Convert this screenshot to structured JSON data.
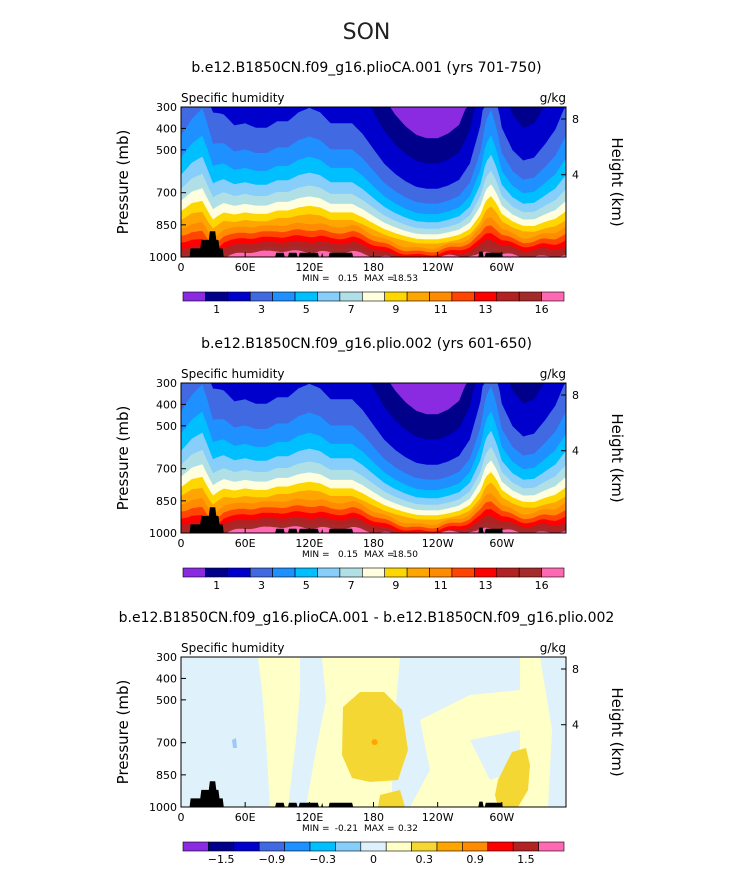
{
  "title": "SON",
  "colors": {
    "full_field": [
      "#8a2be2",
      "#00008b",
      "#0000cd",
      "#4169e1",
      "#1e90ff",
      "#00bfff",
      "#87cefa",
      "#b0e0e6",
      "#ffffe0",
      "#ffd700",
      "#ffa500",
      "#ff8c00",
      "#ff4500",
      "#ff0000",
      "#b22222",
      "#a52a2a",
      "#ff69b4"
    ],
    "difference": [
      "#8a2be2",
      "#00008b",
      "#0000cd",
      "#4169e1",
      "#1e90ff",
      "#00bfff",
      "#87cefa",
      "#dff2fb",
      "#ffffc8",
      "#f5d733",
      "#ffa500",
      "#ff8c00",
      "#ff0000",
      "#b22222",
      "#ff69b4"
    ],
    "topography": "#000000"
  },
  "chart_data": [
    {
      "type": "heatmap",
      "title": "b.e12.B1850CN.f09_g16.plioCA.001 (yrs 701-750)",
      "variable_label": "Specific humidity",
      "units_label": "g/kg",
      "ylabel": "Pressure (mb)",
      "ylabel_right": "Height (km)",
      "x_ticks": [
        "0",
        "60E",
        "120E",
        "180",
        "120W",
        "60W"
      ],
      "y_ticks": [
        "300",
        "400",
        "500",
        "700",
        "850",
        "1000"
      ],
      "y_right_ticks": [
        "8",
        "4"
      ],
      "xlim": [
        0,
        360
      ],
      "ylim": [
        1000,
        300
      ],
      "stats_min_label": "MIN =",
      "stats_min": "0.15",
      "stats_max_label": "MAX =",
      "stats_max": "18.53",
      "colorbar_labels": [
        "1",
        "3",
        "5",
        "7",
        "9",
        "11",
        "13",
        "16"
      ],
      "contour_levels": [
        0.5,
        1,
        2,
        3,
        4,
        5,
        6,
        7,
        8,
        9,
        10,
        11,
        12,
        13,
        14,
        15,
        16
      ],
      "surface_q": [
        [
          0,
          14.5
        ],
        [
          10,
          15
        ],
        [
          20,
          14.5
        ],
        [
          25,
          13.5
        ],
        [
          30,
          13
        ],
        [
          35,
          14
        ],
        [
          40,
          15
        ],
        [
          50,
          15.5
        ],
        [
          60,
          16
        ],
        [
          70,
          16
        ],
        [
          80,
          16
        ],
        [
          90,
          16.5
        ],
        [
          100,
          16.5
        ],
        [
          110,
          16.5
        ],
        [
          120,
          16.5
        ],
        [
          130,
          16.5
        ],
        [
          140,
          16
        ],
        [
          150,
          16
        ],
        [
          160,
          16
        ],
        [
          170,
          15.5
        ],
        [
          180,
          15
        ],
        [
          190,
          14.5
        ],
        [
          200,
          14
        ],
        [
          210,
          13.5
        ],
        [
          220,
          13
        ],
        [
          230,
          13
        ],
        [
          240,
          13
        ],
        [
          250,
          13.5
        ],
        [
          260,
          14
        ],
        [
          270,
          14.5
        ],
        [
          280,
          15.5
        ],
        [
          285,
          16
        ],
        [
          290,
          16
        ],
        [
          300,
          16
        ],
        [
          310,
          16
        ],
        [
          320,
          15.5
        ],
        [
          330,
          15
        ],
        [
          340,
          15
        ],
        [
          350,
          14.5
        ],
        [
          360,
          14.5
        ]
      ],
      "scale_height_mb": [
        [
          0,
          360
        ],
        [
          10,
          400
        ],
        [
          20,
          440
        ],
        [
          25,
          410
        ],
        [
          30,
          360
        ],
        [
          40,
          330
        ],
        [
          50,
          300
        ],
        [
          60,
          300
        ],
        [
          70,
          290
        ],
        [
          80,
          290
        ],
        [
          90,
          300
        ],
        [
          100,
          300
        ],
        [
          110,
          320
        ],
        [
          120,
          330
        ],
        [
          130,
          320
        ],
        [
          140,
          300
        ],
        [
          150,
          300
        ],
        [
          160,
          300
        ],
        [
          170,
          280
        ],
        [
          180,
          250
        ],
        [
          190,
          220
        ],
        [
          200,
          200
        ],
        [
          210,
          185
        ],
        [
          220,
          175
        ],
        [
          230,
          170
        ],
        [
          240,
          170
        ],
        [
          250,
          175
        ],
        [
          260,
          185
        ],
        [
          270,
          220
        ],
        [
          280,
          300
        ],
        [
          285,
          380
        ],
        [
          290,
          410
        ],
        [
          295,
          360
        ],
        [
          300,
          290
        ],
        [
          310,
          240
        ],
        [
          320,
          220
        ],
        [
          330,
          230
        ],
        [
          340,
          260
        ],
        [
          350,
          300
        ],
        [
          360,
          360
        ]
      ],
      "topography_mb": [
        [
          0,
          1000
        ],
        [
          8,
          1000
        ],
        [
          9,
          960
        ],
        [
          18,
          960
        ],
        [
          19,
          920
        ],
        [
          26,
          920
        ],
        [
          27,
          880
        ],
        [
          32,
          880
        ],
        [
          33,
          920
        ],
        [
          35,
          920
        ],
        [
          36,
          960
        ],
        [
          39,
          960
        ],
        [
          40,
          1000
        ],
        [
          88,
          1000
        ],
        [
          89,
          980
        ],
        [
          96,
          980
        ],
        [
          97,
          1000
        ],
        [
          100,
          1000
        ],
        [
          101,
          980
        ],
        [
          108,
          980
        ],
        [
          109,
          1000
        ],
        [
          110,
          1000
        ],
        [
          111,
          980
        ],
        [
          128,
          980
        ],
        [
          129,
          1000
        ],
        [
          131,
          1000
        ],
        [
          132,
          980
        ],
        [
          133,
          1000
        ],
        [
          138,
          1000
        ],
        [
          139,
          980
        ],
        [
          160,
          980
        ],
        [
          161,
          1000
        ],
        [
          278,
          1000
        ],
        [
          279,
          975
        ],
        [
          282,
          975
        ],
        [
          283,
          1000
        ],
        [
          284,
          1000
        ],
        [
          285,
          980
        ],
        [
          300,
          980
        ],
        [
          301,
          1000
        ],
        [
          360,
          1000
        ]
      ]
    },
    {
      "type": "heatmap",
      "title": "b.e12.B1850CN.f09_g16.plio.002 (yrs 601-650)",
      "variable_label": "Specific humidity",
      "units_label": "g/kg",
      "ylabel": "Pressure (mb)",
      "ylabel_right": "Height (km)",
      "x_ticks": [
        "0",
        "60E",
        "120E",
        "180",
        "120W",
        "60W"
      ],
      "y_ticks": [
        "300",
        "400",
        "500",
        "700",
        "850",
        "1000"
      ],
      "y_right_ticks": [
        "8",
        "4"
      ],
      "xlim": [
        0,
        360
      ],
      "ylim": [
        1000,
        300
      ],
      "stats_min_label": "MIN =",
      "stats_min": "0.15",
      "stats_max_label": "MAX =",
      "stats_max": "18.50",
      "colorbar_labels": [
        "1",
        "3",
        "5",
        "7",
        "9",
        "11",
        "13",
        "16"
      ],
      "contour_levels": [
        0.5,
        1,
        2,
        3,
        4,
        5,
        6,
        7,
        8,
        9,
        10,
        11,
        12,
        13,
        14,
        15,
        16
      ],
      "surface_q": [
        [
          0,
          14.5
        ],
        [
          10,
          15
        ],
        [
          20,
          14.5
        ],
        [
          25,
          13.5
        ],
        [
          30,
          13
        ],
        [
          35,
          14
        ],
        [
          40,
          15
        ],
        [
          50,
          15.5
        ],
        [
          60,
          16
        ],
        [
          70,
          16
        ],
        [
          80,
          16
        ],
        [
          90,
          16.5
        ],
        [
          100,
          16.5
        ],
        [
          110,
          16.5
        ],
        [
          120,
          16.5
        ],
        [
          130,
          16.5
        ],
        [
          140,
          16
        ],
        [
          150,
          16
        ],
        [
          160,
          16
        ],
        [
          170,
          15.5
        ],
        [
          180,
          15
        ],
        [
          190,
          14.5
        ],
        [
          200,
          14
        ],
        [
          210,
          13.5
        ],
        [
          220,
          13
        ],
        [
          230,
          13
        ],
        [
          240,
          13
        ],
        [
          250,
          13.5
        ],
        [
          260,
          14
        ],
        [
          270,
          14.5
        ],
        [
          280,
          15.5
        ],
        [
          285,
          16
        ],
        [
          290,
          16
        ],
        [
          300,
          16
        ],
        [
          310,
          16
        ],
        [
          320,
          15.5
        ],
        [
          330,
          15
        ],
        [
          340,
          15
        ],
        [
          350,
          14.5
        ],
        [
          360,
          14.5
        ]
      ],
      "scale_height_mb": [
        [
          0,
          360
        ],
        [
          10,
          400
        ],
        [
          20,
          440
        ],
        [
          25,
          410
        ],
        [
          30,
          360
        ],
        [
          40,
          330
        ],
        [
          50,
          300
        ],
        [
          60,
          300
        ],
        [
          70,
          290
        ],
        [
          80,
          290
        ],
        [
          90,
          300
        ],
        [
          100,
          300
        ],
        [
          110,
          320
        ],
        [
          120,
          330
        ],
        [
          130,
          320
        ],
        [
          140,
          300
        ],
        [
          150,
          300
        ],
        [
          160,
          300
        ],
        [
          170,
          280
        ],
        [
          180,
          250
        ],
        [
          190,
          220
        ],
        [
          200,
          200
        ],
        [
          210,
          185
        ],
        [
          220,
          175
        ],
        [
          230,
          170
        ],
        [
          240,
          170
        ],
        [
          250,
          175
        ],
        [
          260,
          185
        ],
        [
          270,
          220
        ],
        [
          280,
          300
        ],
        [
          285,
          380
        ],
        [
          290,
          410
        ],
        [
          295,
          360
        ],
        [
          300,
          290
        ],
        [
          310,
          240
        ],
        [
          320,
          220
        ],
        [
          330,
          230
        ],
        [
          340,
          260
        ],
        [
          350,
          300
        ],
        [
          360,
          360
        ]
      ],
      "topography_mb": [
        [
          0,
          1000
        ],
        [
          8,
          1000
        ],
        [
          9,
          960
        ],
        [
          18,
          960
        ],
        [
          19,
          920
        ],
        [
          26,
          920
        ],
        [
          27,
          880
        ],
        [
          32,
          880
        ],
        [
          33,
          920
        ],
        [
          35,
          920
        ],
        [
          36,
          960
        ],
        [
          39,
          960
        ],
        [
          40,
          1000
        ],
        [
          88,
          1000
        ],
        [
          89,
          980
        ],
        [
          96,
          980
        ],
        [
          97,
          1000
        ],
        [
          100,
          1000
        ],
        [
          101,
          980
        ],
        [
          108,
          980
        ],
        [
          109,
          1000
        ],
        [
          110,
          1000
        ],
        [
          111,
          980
        ],
        [
          128,
          980
        ],
        [
          129,
          1000
        ],
        [
          131,
          1000
        ],
        [
          132,
          980
        ],
        [
          133,
          1000
        ],
        [
          138,
          1000
        ],
        [
          139,
          980
        ],
        [
          160,
          980
        ],
        [
          161,
          1000
        ],
        [
          278,
          1000
        ],
        [
          279,
          975
        ],
        [
          282,
          975
        ],
        [
          283,
          1000
        ],
        [
          284,
          1000
        ],
        [
          285,
          980
        ],
        [
          300,
          980
        ],
        [
          301,
          1000
        ],
        [
          360,
          1000
        ]
      ]
    },
    {
      "type": "heatmap",
      "title": "b.e12.B1850CN.f09_g16.plioCA.001 - b.e12.B1850CN.f09_g16.plio.002",
      "variable_label": "Specific humidity",
      "units_label": "g/kg",
      "ylabel": "Pressure (mb)",
      "ylabel_right": "Height (km)",
      "x_ticks": [
        "0",
        "60E",
        "120E",
        "180",
        "120W",
        "60W"
      ],
      "y_ticks": [
        "300",
        "400",
        "500",
        "700",
        "850",
        "1000"
      ],
      "y_right_ticks": [
        "8",
        "4"
      ],
      "xlim": [
        0,
        360
      ],
      "ylim": [
        1000,
        300
      ],
      "stats_min_label": "MIN =",
      "stats_min": "-0.21",
      "stats_max_label": "MAX =",
      "stats_max": "0.32",
      "colorbar_labels": [
        "−1.5",
        "−0.9",
        "−0.3",
        "0",
        "0.3",
        "0.9",
        "1.5"
      ],
      "contour_levels": [
        -1.8,
        -1.5,
        -1.2,
        -0.9,
        -0.6,
        -0.3,
        -0.1,
        0,
        0.1,
        0.3,
        0.6,
        0.9,
        1.2,
        1.5
      ],
      "difference_regions": [
        {
          "level": "-0.1_to_0",
          "lon_range": [
            0,
            75
          ],
          "p_range": [
            1000,
            300
          ]
        },
        {
          "level": "0_to_0.1",
          "lon_range": [
            75,
            150
          ],
          "p_range": [
            900,
            300
          ]
        },
        {
          "level": "0.1_to_0.3",
          "lon_range": [
            150,
            215
          ],
          "p_range": [
            840,
            430
          ]
        },
        {
          "level": "0.1_to_0.3",
          "lon_range": [
            300,
            335
          ],
          "p_range": [
            1000,
            770
          ]
        },
        {
          "level": "0.3_to_0.6",
          "lon_range": [
            180,
            182
          ],
          "p_range": [
            700,
            690
          ]
        }
      ],
      "topography_mb": [
        [
          0,
          1000
        ],
        [
          8,
          1000
        ],
        [
          9,
          960
        ],
        [
          18,
          960
        ],
        [
          19,
          920
        ],
        [
          26,
          920
        ],
        [
          27,
          880
        ],
        [
          32,
          880
        ],
        [
          33,
          920
        ],
        [
          35,
          920
        ],
        [
          36,
          960
        ],
        [
          39,
          960
        ],
        [
          40,
          1000
        ],
        [
          88,
          1000
        ],
        [
          89,
          980
        ],
        [
          96,
          980
        ],
        [
          97,
          1000
        ],
        [
          100,
          1000
        ],
        [
          101,
          980
        ],
        [
          108,
          980
        ],
        [
          109,
          1000
        ],
        [
          110,
          1000
        ],
        [
          111,
          980
        ],
        [
          128,
          980
        ],
        [
          129,
          1000
        ],
        [
          131,
          1000
        ],
        [
          132,
          980
        ],
        [
          133,
          1000
        ],
        [
          138,
          1000
        ],
        [
          139,
          980
        ],
        [
          160,
          980
        ],
        [
          161,
          1000
        ],
        [
          278,
          1000
        ],
        [
          279,
          975
        ],
        [
          282,
          975
        ],
        [
          283,
          1000
        ],
        [
          284,
          1000
        ],
        [
          285,
          980
        ],
        [
          300,
          980
        ],
        [
          301,
          1000
        ],
        [
          360,
          1000
        ]
      ]
    }
  ]
}
